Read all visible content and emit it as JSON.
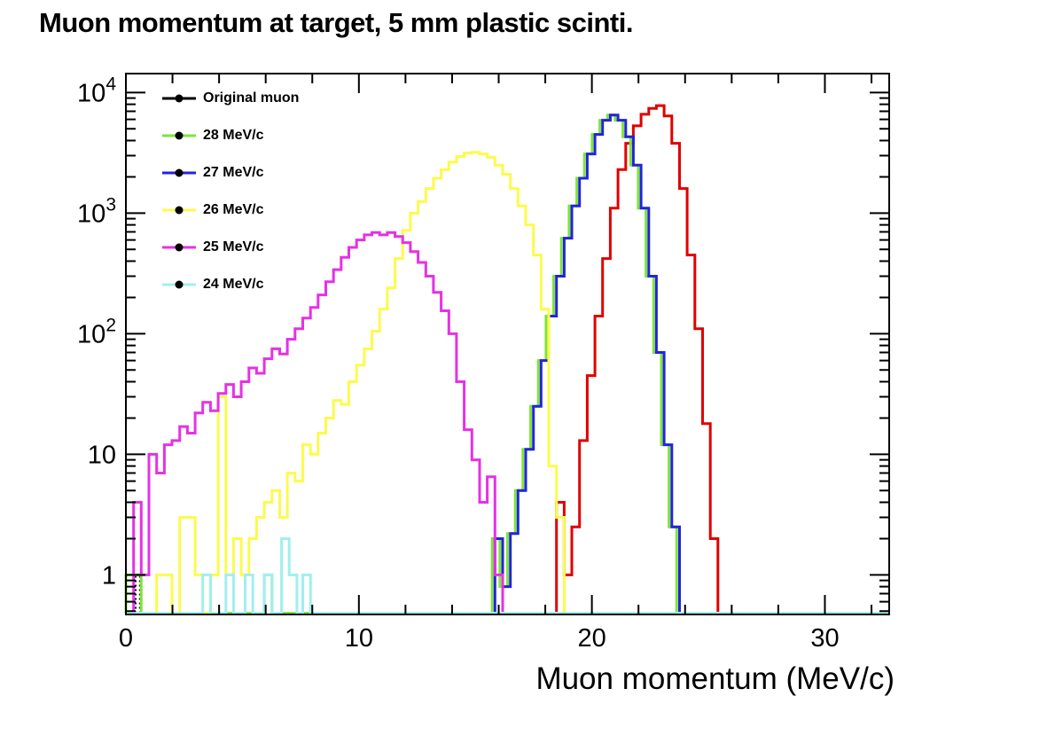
{
  "header": {
    "title": "Muon momentum at target, 5 mm plastic scinti."
  },
  "chart_data": {
    "type": "line",
    "subtype": "step-histogram",
    "title": "Muon momentum at target, 5 mm plastic scinti.",
    "xlabel": "Muon momentum (MeV/c)",
    "ylabel": "",
    "xscale": "linear",
    "yscale": "log",
    "xlim": [
      0,
      32.76
    ],
    "ylim": [
      0.47,
      14000
    ],
    "bin_width": 0.33,
    "grid": false,
    "frame_ticks_mirrored": true,
    "x_ticks_major": [
      0,
      10,
      20,
      30
    ],
    "x_tick_labels": [
      "0",
      "10",
      "20",
      "30"
    ],
    "x_minor_step": 2,
    "y_ticks_major": [
      1,
      10,
      100,
      1000,
      10000
    ],
    "y_tick_labels": [
      {
        "value": 1,
        "base": "1",
        "sup": ""
      },
      {
        "value": 10,
        "base": "10",
        "sup": ""
      },
      {
        "value": 100,
        "base": "10",
        "sup": "2"
      },
      {
        "value": 1000,
        "base": "10",
        "sup": "3"
      },
      {
        "value": 10000,
        "base": "10",
        "sup": "4"
      }
    ],
    "legend_position": "top-left-inside",
    "legend_marker": "filled-black-circle",
    "legend": [
      {
        "label": "Original muon",
        "color": "#000000"
      },
      {
        "label": "28 MeV/c",
        "color": "#7fe53a"
      },
      {
        "label": "27 MeV/c",
        "color": "#2323dd"
      },
      {
        "label": "26 MeV/c",
        "color": "#fbfb4e"
      },
      {
        "label": "25 MeV/c",
        "color": "#e531e5"
      },
      {
        "label": "24 MeV/c",
        "color": "#a0efef"
      }
    ],
    "series": [
      {
        "name": "original_muon",
        "label": "Original muon",
        "color": "#000000",
        "dash": "2 3",
        "points": [
          [
            0.4,
            1
          ],
          [
            0.62,
            0
          ]
        ]
      },
      {
        "name": "unlabeled_red",
        "label": "",
        "color": "#e00000",
        "dash": "",
        "points": [
          [
            18.48,
            4
          ],
          [
            18.81,
            1
          ],
          [
            19.14,
            2.5
          ],
          [
            19.47,
            13
          ],
          [
            19.8,
            45
          ],
          [
            20.13,
            140
          ],
          [
            20.46,
            420
          ],
          [
            20.79,
            1100
          ],
          [
            21.12,
            2300
          ],
          [
            21.45,
            3800
          ],
          [
            21.78,
            5300
          ],
          [
            22.11,
            6600
          ],
          [
            22.44,
            7400
          ],
          [
            22.77,
            7800
          ],
          [
            23.1,
            6400
          ],
          [
            23.43,
            3800
          ],
          [
            23.76,
            1600
          ],
          [
            24.09,
            450
          ],
          [
            24.42,
            110
          ],
          [
            24.75,
            18
          ],
          [
            25.08,
            2
          ],
          [
            25.41,
            0
          ]
        ]
      },
      {
        "name": "p28",
        "label": "28 MeV/c",
        "color": "#7fe53a",
        "dash": "",
        "points": [
          [
            0.0,
            1
          ],
          [
            0.66,
            0
          ],
          [
            5.94,
            1
          ],
          [
            6.27,
            0
          ],
          [
            15.72,
            2
          ],
          [
            16.05,
            0.8
          ],
          [
            16.38,
            2.2
          ],
          [
            16.71,
            5
          ],
          [
            17.04,
            11
          ],
          [
            17.37,
            25
          ],
          [
            17.7,
            60
          ],
          [
            18.03,
            140
          ],
          [
            18.36,
            300
          ],
          [
            18.69,
            620
          ],
          [
            19.02,
            1150
          ],
          [
            19.35,
            1950
          ],
          [
            19.68,
            3100
          ],
          [
            20.01,
            4500
          ],
          [
            20.34,
            5900
          ],
          [
            20.67,
            6500
          ],
          [
            21.0,
            5900
          ],
          [
            21.33,
            4300
          ],
          [
            21.66,
            2500
          ],
          [
            21.99,
            1100
          ],
          [
            22.32,
            300
          ],
          [
            22.65,
            70
          ],
          [
            22.98,
            12
          ],
          [
            23.31,
            2.5
          ],
          [
            23.64,
            0
          ]
        ]
      },
      {
        "name": "p27",
        "label": "27 MeV/c",
        "color": "#2323dd",
        "dash": "",
        "points": [
          [
            15.84,
            2
          ],
          [
            16.17,
            0.8
          ],
          [
            16.5,
            2.2
          ],
          [
            16.83,
            5
          ],
          [
            17.16,
            11
          ],
          [
            17.49,
            25
          ],
          [
            17.82,
            60
          ],
          [
            18.15,
            140
          ],
          [
            18.48,
            300
          ],
          [
            18.81,
            620
          ],
          [
            19.14,
            1150
          ],
          [
            19.47,
            1950
          ],
          [
            19.8,
            3100
          ],
          [
            20.13,
            4500
          ],
          [
            20.46,
            5900
          ],
          [
            20.79,
            6500
          ],
          [
            21.12,
            5900
          ],
          [
            21.45,
            4300
          ],
          [
            21.78,
            2500
          ],
          [
            22.11,
            1100
          ],
          [
            22.44,
            300
          ],
          [
            22.77,
            70
          ],
          [
            23.1,
            12
          ],
          [
            23.43,
            2.5
          ],
          [
            23.76,
            0
          ]
        ]
      },
      {
        "name": "p26",
        "label": "26 MeV/c",
        "color": "#fbfb4e",
        "dash": "",
        "points": [
          [
            1.32,
            1
          ],
          [
            1.98,
            0
          ],
          [
            2.31,
            3
          ],
          [
            2.97,
            1
          ],
          [
            3.3,
            0
          ],
          [
            3.63,
            1
          ],
          [
            3.96,
            30
          ],
          [
            4.29,
            1
          ],
          [
            4.62,
            2
          ],
          [
            4.95,
            1
          ],
          [
            5.28,
            2
          ],
          [
            5.61,
            3
          ],
          [
            5.94,
            4
          ],
          [
            6.27,
            5
          ],
          [
            6.6,
            3
          ],
          [
            6.93,
            7
          ],
          [
            7.26,
            6
          ],
          [
            7.59,
            12
          ],
          [
            7.92,
            10
          ],
          [
            8.25,
            15
          ],
          [
            8.58,
            20
          ],
          [
            8.91,
            28
          ],
          [
            9.24,
            26
          ],
          [
            9.57,
            40
          ],
          [
            9.9,
            55
          ],
          [
            10.23,
            75
          ],
          [
            10.56,
            105
          ],
          [
            10.89,
            160
          ],
          [
            11.22,
            240
          ],
          [
            11.55,
            420
          ],
          [
            11.88,
            720
          ],
          [
            12.21,
            1000
          ],
          [
            12.54,
            1250
          ],
          [
            12.87,
            1600
          ],
          [
            13.2,
            1950
          ],
          [
            13.53,
            2300
          ],
          [
            13.86,
            2650
          ],
          [
            14.19,
            2950
          ],
          [
            14.52,
            3150
          ],
          [
            14.85,
            3200
          ],
          [
            15.18,
            3100
          ],
          [
            15.51,
            2900
          ],
          [
            15.84,
            2500
          ],
          [
            16.17,
            2100
          ],
          [
            16.5,
            1600
          ],
          [
            16.83,
            1150
          ],
          [
            17.16,
            800
          ],
          [
            17.49,
            450
          ],
          [
            17.82,
            160
          ],
          [
            18.15,
            8
          ],
          [
            18.48,
            3
          ],
          [
            18.81,
            0
          ]
        ]
      },
      {
        "name": "p25",
        "label": "25 MeV/c",
        "color": "#e531e5",
        "dash": "",
        "points": [
          [
            0.33,
            4
          ],
          [
            0.66,
            1
          ],
          [
            0.99,
            10
          ],
          [
            1.32,
            7
          ],
          [
            1.65,
            12
          ],
          [
            1.98,
            13
          ],
          [
            2.31,
            17
          ],
          [
            2.64,
            15
          ],
          [
            2.97,
            22
          ],
          [
            3.3,
            27
          ],
          [
            3.63,
            23
          ],
          [
            3.96,
            32
          ],
          [
            4.29,
            38
          ],
          [
            4.62,
            30
          ],
          [
            4.95,
            40
          ],
          [
            5.28,
            52
          ],
          [
            5.61,
            47
          ],
          [
            5.94,
            62
          ],
          [
            6.27,
            75
          ],
          [
            6.6,
            68
          ],
          [
            6.93,
            90
          ],
          [
            7.26,
            110
          ],
          [
            7.59,
            135
          ],
          [
            7.92,
            165
          ],
          [
            8.25,
            210
          ],
          [
            8.58,
            270
          ],
          [
            8.91,
            340
          ],
          [
            9.24,
            430
          ],
          [
            9.57,
            520
          ],
          [
            9.9,
            600
          ],
          [
            10.23,
            660
          ],
          [
            10.56,
            690
          ],
          [
            10.89,
            660
          ],
          [
            11.22,
            690
          ],
          [
            11.55,
            640
          ],
          [
            11.88,
            570
          ],
          [
            12.21,
            480
          ],
          [
            12.54,
            390
          ],
          [
            12.87,
            300
          ],
          [
            13.2,
            220
          ],
          [
            13.53,
            155
          ],
          [
            13.86,
            100
          ],
          [
            14.19,
            40
          ],
          [
            14.52,
            16
          ],
          [
            14.85,
            9
          ],
          [
            15.18,
            4
          ],
          [
            15.51,
            6.5
          ],
          [
            15.84,
            1
          ],
          [
            16.17,
            0
          ]
        ]
      },
      {
        "name": "p24",
        "label": "24 MeV/c",
        "color": "#a0efef",
        "dash": "",
        "points": [
          [
            0.0,
            0
          ],
          [
            3.3,
            1
          ],
          [
            3.63,
            0
          ],
          [
            4.29,
            1
          ],
          [
            4.62,
            0
          ],
          [
            5.12,
            1
          ],
          [
            5.45,
            0
          ],
          [
            5.94,
            1
          ],
          [
            6.27,
            0
          ],
          [
            6.68,
            2
          ],
          [
            7.01,
            1
          ],
          [
            7.34,
            0
          ],
          [
            7.59,
            1
          ],
          [
            7.92,
            0
          ],
          [
            32.76,
            0
          ]
        ]
      }
    ]
  }
}
